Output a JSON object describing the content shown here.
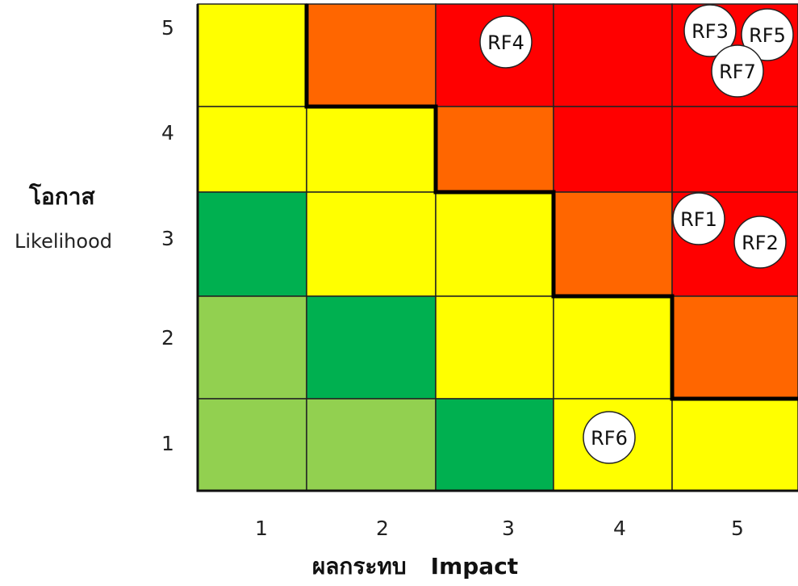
{
  "y_axis": {
    "label_th": "โอกาส",
    "label_en": "Likelihood",
    "ticks": [
      "5",
      "4",
      "3",
      "2",
      "1"
    ]
  },
  "x_axis": {
    "label_th": "ผลกระทบ",
    "label_en": "Impact",
    "ticks": [
      "1",
      "2",
      "3",
      "4",
      "5"
    ]
  },
  "colors": {
    "light_green": "#92D050",
    "green": "#00B050",
    "yellow": "#FFFF00",
    "orange": "#FF6600",
    "red": "#FF0000"
  },
  "grid": [
    [
      "yellow",
      "orange",
      "red",
      "red",
      "red"
    ],
    [
      "yellow",
      "yellow",
      "orange",
      "red",
      "red"
    ],
    [
      "green",
      "yellow",
      "yellow",
      "orange",
      "red"
    ],
    [
      "light_green",
      "green",
      "yellow",
      "yellow",
      "orange"
    ],
    [
      "light_green",
      "light_green",
      "green",
      "yellow",
      "yellow"
    ]
  ],
  "risks": [
    {
      "label": "RF4",
      "impact": 3,
      "likelihood": 5
    },
    {
      "label": "RF3",
      "impact": 5,
      "likelihood": 5
    },
    {
      "label": "RF5",
      "impact": 5,
      "likelihood": 5
    },
    {
      "label": "RF7",
      "impact": 5,
      "likelihood": 5
    },
    {
      "label": "RF1",
      "impact": 5,
      "likelihood": 3
    },
    {
      "label": "RF2",
      "impact": 5,
      "likelihood": 3
    },
    {
      "label": "RF6",
      "impact": 4,
      "likelihood": 1
    }
  ]
}
